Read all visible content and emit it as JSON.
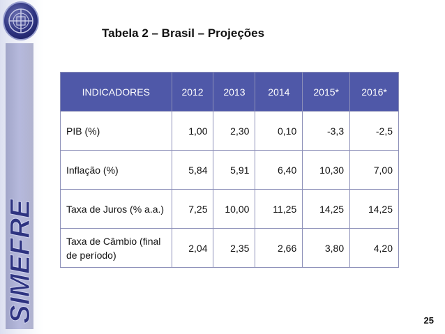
{
  "header": {
    "title": "Tabela 2 – Brasil – Projeções"
  },
  "sidebar": {
    "brand_text": "SIMEFRE",
    "logo_icon": "simefre-emblem-icon"
  },
  "table": {
    "columns": [
      "INDICADORES",
      "2012",
      "2013",
      "2014",
      "2015*",
      "2016*"
    ],
    "rows": [
      {
        "label": "PIB (%)",
        "values": [
          "1,00",
          "2,30",
          "0,10",
          "-3,3",
          "-2,5"
        ]
      },
      {
        "label": "Inflação (%)",
        "values": [
          "5,84",
          "5,91",
          "6,40",
          "10,30",
          "7,00"
        ]
      },
      {
        "label": "Taxa de Juros (% a.a.)",
        "values": [
          "7,25",
          "10,00",
          "11,25",
          "14,25",
          "14,25"
        ]
      },
      {
        "label": "Taxa de Câmbio (final de período)",
        "values": [
          "2,04",
          "2,35",
          "2,66",
          "3,80",
          "4,20"
        ]
      }
    ]
  },
  "footer": {
    "page_number": "25"
  },
  "colors": {
    "header_bg": "#4f58a8",
    "border": "#8c8fb8",
    "brand": "#2e3380"
  }
}
